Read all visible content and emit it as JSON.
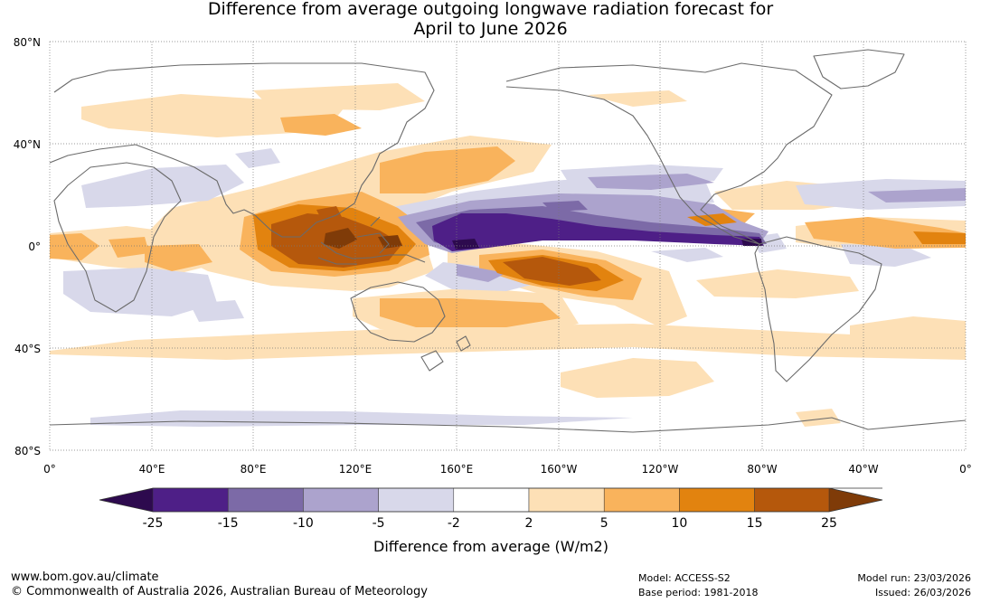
{
  "title_line1": "Difference from average outgoing longwave radiation forecast for",
  "title_line2": "April to June 2026",
  "lat_labels": [
    "80°N",
    "40°N",
    "0°",
    "40°S",
    "80°S"
  ],
  "lon_labels": [
    "0°",
    "40°E",
    "80°E",
    "120°E",
    "160°E",
    "160°W",
    "120°W",
    "80°W",
    "40°W",
    "0°"
  ],
  "colorbar": {
    "ticks": [
      "-25",
      "-15",
      "-10",
      "-5",
      "-2",
      "2",
      "5",
      "10",
      "15",
      "25"
    ],
    "colors": [
      "#4e1f87",
      "#7c6aa7",
      "#aca3cd",
      "#d8d8ea",
      "#ffffff",
      "#fde0b6",
      "#f9b35c",
      "#e2830f",
      "#b5580c"
    ],
    "low_color": "#2d0a4e",
    "high_color": "#7f3b08",
    "label": "Difference from average (W/m2)"
  },
  "footer": {
    "website": "www.bom.gov.au/climate",
    "copyright": "© Commonwealth of Australia 2026, Australian Bureau of Meteorology",
    "model": "Model: ACCESS-S2",
    "base_period": "Base period: 1981-2018",
    "model_run": "Model run: 23/03/2026",
    "issued": "Issued: 26/03/2026"
  }
}
